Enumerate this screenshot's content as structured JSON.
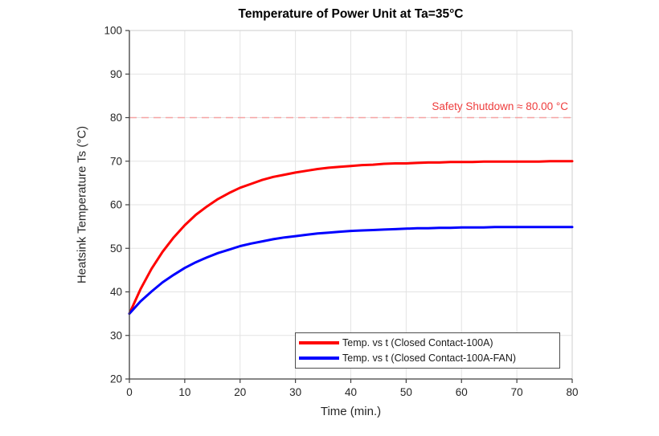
{
  "chart_data": {
    "type": "line",
    "title": "Temperature of Power Unit at Ta=35°C",
    "xlabel": "Time (min.)",
    "ylabel": "Heatsink Temperature Ts (°C)",
    "xlim": [
      0,
      80
    ],
    "ylim": [
      20,
      100
    ],
    "xticks": [
      0,
      10,
      20,
      30,
      40,
      50,
      60,
      70,
      80
    ],
    "yticks": [
      20,
      30,
      40,
      50,
      60,
      70,
      80,
      90,
      100
    ],
    "grid": true,
    "legend_position": "bottom-right",
    "x": [
      0,
      2,
      4,
      6,
      8,
      10,
      12,
      14,
      16,
      18,
      20,
      22,
      24,
      26,
      28,
      30,
      32,
      34,
      36,
      38,
      40,
      42,
      44,
      46,
      48,
      50,
      52,
      54,
      56,
      58,
      60,
      62,
      64,
      66,
      68,
      70,
      72,
      74,
      76,
      78,
      80
    ],
    "series": [
      {
        "name": "Temp. vs t (Closed Contact-100A)",
        "color": "#ff0000",
        "line_width": 3,
        "values": [
          35.0,
          40.6,
          45.3,
          49.2,
          52.5,
          55.3,
          57.7,
          59.6,
          61.3,
          62.7,
          63.9,
          64.8,
          65.7,
          66.4,
          66.9,
          67.4,
          67.8,
          68.2,
          68.5,
          68.7,
          68.9,
          69.1,
          69.2,
          69.4,
          69.5,
          69.5,
          69.6,
          69.7,
          69.7,
          69.8,
          69.8,
          69.8,
          69.9,
          69.9,
          69.9,
          69.9,
          69.9,
          69.9,
          70.0,
          70.0,
          70.0
        ]
      },
      {
        "name": "Temp. vs t (Closed Contact-100A-FAN)",
        "color": "#0000ff",
        "line_width": 3,
        "values": [
          35.0,
          37.8,
          40.1,
          42.2,
          43.9,
          45.5,
          46.8,
          47.9,
          48.9,
          49.7,
          50.5,
          51.1,
          51.6,
          52.1,
          52.5,
          52.8,
          53.1,
          53.4,
          53.6,
          53.8,
          54.0,
          54.1,
          54.2,
          54.3,
          54.4,
          54.5,
          54.6,
          54.6,
          54.7,
          54.7,
          54.8,
          54.8,
          54.8,
          54.9,
          54.9,
          54.9,
          54.9,
          54.9,
          54.9,
          54.9,
          54.9
        ]
      }
    ],
    "threshold": {
      "value": 80,
      "label": "Safety Shutdown ≈ 80.00 °C",
      "line_color": "#f5a3a3",
      "label_color": "#ee3c3c",
      "style": "dashed"
    }
  },
  "colors": {
    "background": "#ffffff",
    "axis": "#3f3f3f",
    "box": "#d7d7d7",
    "grid": "#e3e3e3",
    "tick_label": "#262626",
    "legend_border": "#4d4d4d",
    "legend_bg": "#ffffff"
  }
}
